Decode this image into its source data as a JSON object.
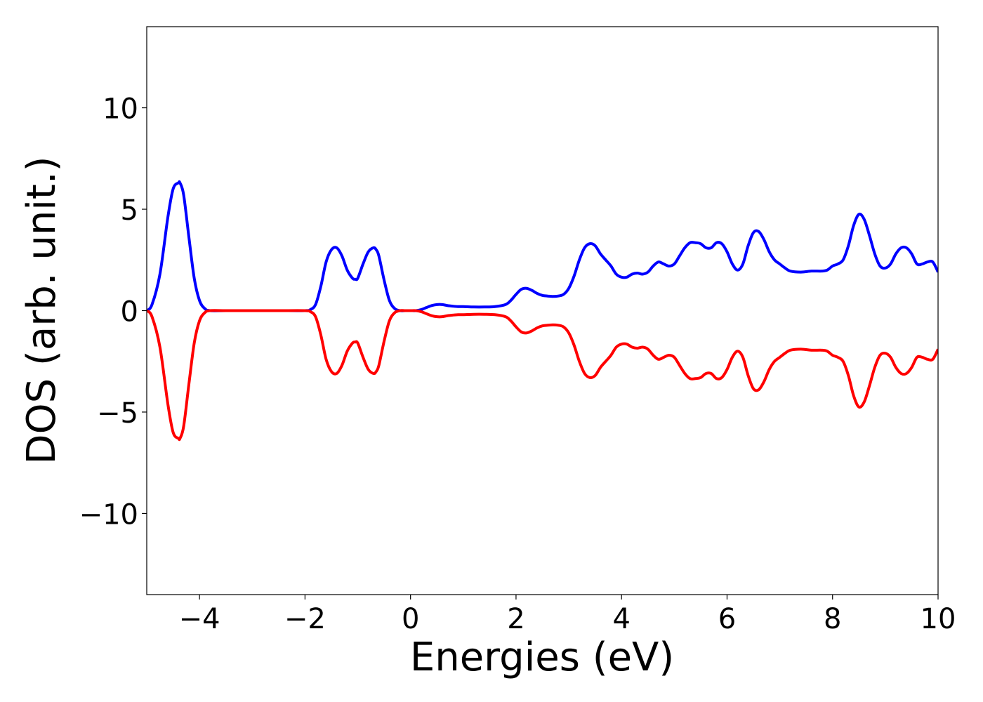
{
  "chart_data": {
    "type": "line",
    "title": "",
    "xlabel": "Energies (eV)",
    "ylabel": "DOS (arb. unit.)",
    "xlim": [
      -5,
      10
    ],
    "ylim": [
      -14,
      14
    ],
    "grid": false,
    "xticks": [
      -4,
      -2,
      0,
      2,
      4,
      6,
      8,
      10
    ],
    "xtick_labels": [
      "−4",
      "−2",
      "0",
      "2",
      "4",
      "6",
      "8",
      "10"
    ],
    "yticks": [
      10,
      5,
      0,
      -5,
      -10
    ],
    "ytick_labels": [
      "10",
      "5",
      "0",
      "−5",
      "−10"
    ],
    "series": [
      {
        "color": "#0000ff",
        "x": [
          -5.0,
          -4.9,
          -4.75,
          -4.6,
          -4.5,
          -4.4,
          -4.37,
          -4.3,
          -4.2,
          -4.1,
          -4.0,
          -3.9,
          -3.8,
          -3.5,
          -3.0,
          -2.5,
          -2.0,
          -1.9,
          -1.8,
          -1.7,
          -1.6,
          -1.5,
          -1.4,
          -1.3,
          -1.2,
          -1.1,
          -1.05,
          -1.0,
          -0.9,
          -0.8,
          -0.7,
          -0.65,
          -0.6,
          -0.5,
          -0.4,
          -0.3,
          -0.2,
          -0.1,
          0.0,
          0.1,
          0.2,
          0.3,
          0.4,
          0.5,
          0.6,
          0.7,
          0.8,
          0.9,
          1.0,
          1.2,
          1.4,
          1.6,
          1.8,
          1.9,
          2.0,
          2.1,
          2.2,
          2.3,
          2.4,
          2.5,
          2.6,
          2.7,
          2.8,
          2.9,
          3.0,
          3.1,
          3.2,
          3.3,
          3.4,
          3.5,
          3.6,
          3.7,
          3.8,
          3.9,
          4.0,
          4.1,
          4.2,
          4.3,
          4.4,
          4.5,
          4.6,
          4.7,
          4.8,
          4.9,
          5.0,
          5.1,
          5.2,
          5.3,
          5.4,
          5.5,
          5.6,
          5.7,
          5.8,
          5.9,
          6.0,
          6.1,
          6.2,
          6.3,
          6.4,
          6.5,
          6.6,
          6.7,
          6.8,
          6.9,
          7.0,
          7.1,
          7.2,
          7.4,
          7.6,
          7.8,
          7.9,
          8.0,
          8.1,
          8.2,
          8.3,
          8.4,
          8.5,
          8.6,
          8.7,
          8.8,
          8.9,
          9.0,
          9.1,
          9.2,
          9.3,
          9.4,
          9.5,
          9.6,
          9.7,
          9.8,
          9.9,
          10.0
        ],
        "y": [
          0.0,
          0.3,
          1.8,
          4.6,
          6.0,
          6.3,
          6.3,
          5.7,
          3.6,
          1.6,
          0.5,
          0.1,
          0.0,
          0.0,
          0.0,
          0.0,
          0.0,
          0.05,
          0.3,
          1.2,
          2.4,
          3.0,
          3.1,
          2.7,
          2.0,
          1.6,
          1.55,
          1.6,
          2.3,
          2.9,
          3.1,
          3.0,
          2.7,
          1.5,
          0.5,
          0.1,
          0.0,
          0.0,
          0.0,
          0.0,
          0.05,
          0.15,
          0.25,
          0.3,
          0.3,
          0.25,
          0.22,
          0.2,
          0.2,
          0.18,
          0.18,
          0.2,
          0.3,
          0.5,
          0.8,
          1.05,
          1.1,
          1.0,
          0.85,
          0.75,
          0.72,
          0.7,
          0.72,
          0.8,
          1.1,
          1.7,
          2.5,
          3.1,
          3.3,
          3.2,
          2.8,
          2.5,
          2.2,
          1.8,
          1.65,
          1.65,
          1.8,
          1.85,
          1.8,
          1.9,
          2.2,
          2.4,
          2.3,
          2.2,
          2.3,
          2.7,
          3.1,
          3.35,
          3.35,
          3.3,
          3.1,
          3.1,
          3.35,
          3.3,
          2.9,
          2.3,
          2.0,
          2.3,
          3.2,
          3.85,
          3.9,
          3.5,
          2.9,
          2.5,
          2.3,
          2.1,
          1.95,
          1.9,
          1.95,
          1.95,
          2.0,
          2.2,
          2.3,
          2.5,
          3.2,
          4.2,
          4.75,
          4.5,
          3.7,
          2.8,
          2.2,
          2.1,
          2.3,
          2.8,
          3.1,
          3.1,
          2.8,
          2.3,
          2.3,
          2.4,
          2.4,
          1.9
        ]
      },
      {
        "color": "#ff0000",
        "x": [
          -5.0,
          -4.9,
          -4.75,
          -4.6,
          -4.5,
          -4.4,
          -4.37,
          -4.3,
          -4.2,
          -4.1,
          -4.0,
          -3.9,
          -3.8,
          -3.5,
          -3.0,
          -2.5,
          -2.0,
          -1.9,
          -1.8,
          -1.7,
          -1.6,
          -1.5,
          -1.4,
          -1.3,
          -1.2,
          -1.1,
          -1.05,
          -1.0,
          -0.9,
          -0.8,
          -0.7,
          -0.65,
          -0.6,
          -0.5,
          -0.4,
          -0.3,
          -0.2,
          -0.1,
          0.0,
          0.1,
          0.2,
          0.3,
          0.4,
          0.5,
          0.6,
          0.7,
          0.8,
          0.9,
          1.0,
          1.2,
          1.4,
          1.6,
          1.8,
          1.9,
          2.0,
          2.1,
          2.2,
          2.3,
          2.4,
          2.5,
          2.6,
          2.7,
          2.8,
          2.9,
          3.0,
          3.1,
          3.2,
          3.3,
          3.4,
          3.5,
          3.6,
          3.7,
          3.8,
          3.9,
          4.0,
          4.1,
          4.2,
          4.3,
          4.4,
          4.5,
          4.6,
          4.7,
          4.8,
          4.9,
          5.0,
          5.1,
          5.2,
          5.3,
          5.4,
          5.5,
          5.6,
          5.7,
          5.8,
          5.9,
          6.0,
          6.1,
          6.2,
          6.3,
          6.4,
          6.5,
          6.6,
          6.7,
          6.8,
          6.9,
          7.0,
          7.1,
          7.2,
          7.4,
          7.6,
          7.8,
          7.9,
          8.0,
          8.1,
          8.2,
          8.3,
          8.4,
          8.5,
          8.6,
          8.7,
          8.8,
          8.9,
          9.0,
          9.1,
          9.2,
          9.3,
          9.4,
          9.5,
          9.6,
          9.7,
          9.8,
          9.9,
          10.0
        ],
        "y": [
          0.0,
          -0.3,
          -1.8,
          -4.6,
          -6.0,
          -6.3,
          -6.3,
          -5.7,
          -3.6,
          -1.6,
          -0.5,
          -0.1,
          0.0,
          0.0,
          0.0,
          0.0,
          0.0,
          -0.05,
          -0.3,
          -1.2,
          -2.4,
          -3.0,
          -3.1,
          -2.7,
          -2.0,
          -1.6,
          -1.55,
          -1.6,
          -2.3,
          -2.9,
          -3.1,
          -3.0,
          -2.7,
          -1.5,
          -0.5,
          -0.1,
          0.0,
          0.0,
          0.0,
          0.0,
          -0.05,
          -0.15,
          -0.25,
          -0.3,
          -0.3,
          -0.25,
          -0.22,
          -0.2,
          -0.2,
          -0.18,
          -0.18,
          -0.2,
          -0.3,
          -0.5,
          -0.8,
          -1.05,
          -1.1,
          -1.0,
          -0.85,
          -0.75,
          -0.72,
          -0.7,
          -0.72,
          -0.8,
          -1.1,
          -1.7,
          -2.5,
          -3.1,
          -3.3,
          -3.2,
          -2.8,
          -2.5,
          -2.2,
          -1.8,
          -1.65,
          -1.65,
          -1.8,
          -1.85,
          -1.8,
          -1.9,
          -2.2,
          -2.4,
          -2.3,
          -2.2,
          -2.3,
          -2.7,
          -3.1,
          -3.35,
          -3.35,
          -3.3,
          -3.1,
          -3.1,
          -3.35,
          -3.3,
          -2.9,
          -2.3,
          -2.0,
          -2.3,
          -3.2,
          -3.85,
          -3.9,
          -3.5,
          -2.9,
          -2.5,
          -2.3,
          -2.1,
          -1.95,
          -1.9,
          -1.95,
          -1.95,
          -2.0,
          -2.2,
          -2.3,
          -2.5,
          -3.2,
          -4.2,
          -4.75,
          -4.5,
          -3.7,
          -2.8,
          -2.2,
          -2.1,
          -2.3,
          -2.8,
          -3.1,
          -3.1,
          -2.8,
          -2.3,
          -2.3,
          -2.4,
          -2.4,
          -1.9
        ]
      }
    ]
  }
}
